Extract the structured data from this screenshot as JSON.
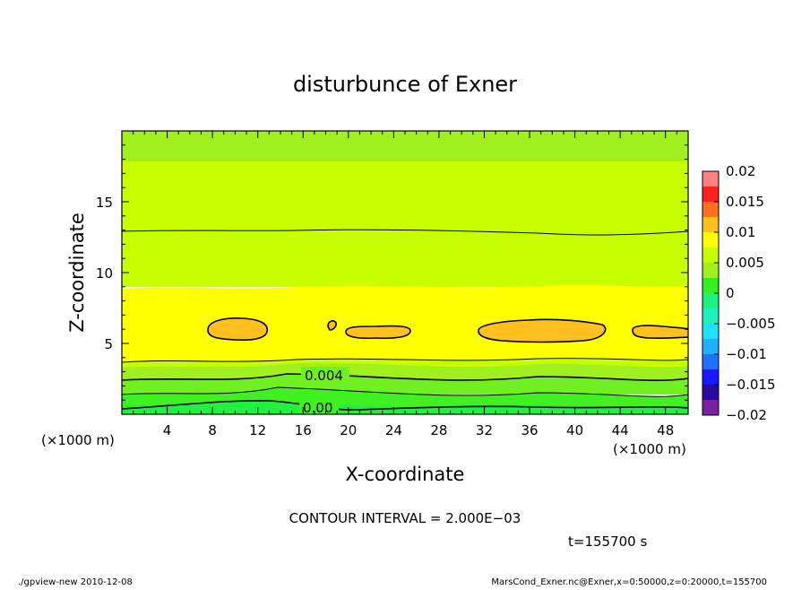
{
  "chart_data": {
    "type": "heatmap",
    "title": "disturbunce of Exner",
    "xlabel": "X-coordinate",
    "ylabel": "Z-coordinate",
    "x_unit_label": "(×1000 m)",
    "x_unit_label_right": "(×1000 m)",
    "xlim": [
      0,
      50
    ],
    "ylim": [
      0,
      20
    ],
    "xticks": [
      4,
      8,
      12,
      16,
      20,
      24,
      28,
      32,
      36,
      40,
      44,
      48
    ],
    "yticks": [
      5,
      10,
      15
    ],
    "colorbar": {
      "ticks": [
        "0.02",
        "0.015",
        "0.01",
        "0.005",
        "0",
        "−0.005",
        "−0.01",
        "−0.015",
        "−0.02"
      ],
      "range": [
        -0.02,
        0.02
      ],
      "levels": [
        {
          "min": -0.02,
          "max": -0.0175,
          "color": "#7a1fa0"
        },
        {
          "min": -0.0175,
          "max": -0.015,
          "color": "#2a0a9e"
        },
        {
          "min": -0.015,
          "max": -0.0125,
          "color": "#1a1aff"
        },
        {
          "min": -0.0125,
          "max": -0.01,
          "color": "#2070ff"
        },
        {
          "min": -0.01,
          "max": -0.0075,
          "color": "#20b0ff"
        },
        {
          "min": -0.0075,
          "max": -0.005,
          "color": "#20e0ff"
        },
        {
          "min": -0.005,
          "max": -0.0025,
          "color": "#20f0c0"
        },
        {
          "min": -0.0025,
          "max": 0,
          "color": "#20f080"
        },
        {
          "min": 0,
          "max": 0.0025,
          "color": "#30f020"
        },
        {
          "min": 0.0025,
          "max": 0.005,
          "color": "#a0f020"
        },
        {
          "min": 0.005,
          "max": 0.0075,
          "color": "#c8ff00"
        },
        {
          "min": 0.0075,
          "max": 0.01,
          "color": "#ffff00"
        },
        {
          "min": 0.01,
          "max": 0.0125,
          "color": "#ffc020"
        },
        {
          "min": 0.0125,
          "max": 0.015,
          "color": "#ff7020"
        },
        {
          "min": 0.015,
          "max": 0.0175,
          "color": "#ff2020"
        },
        {
          "min": 0.0175,
          "max": 0.02,
          "color": "#ff8080"
        }
      ]
    },
    "contour_labels": [
      "0.004",
      "0.00"
    ],
    "contour_interval": "CONTOUR INTERVAL = 2.000E−03",
    "time_label": "t=155700 s",
    "footer_left": "./gpview-new   2010-12-08",
    "footer_right": "MarsCond_Exner.nc@Exner,x=0:50000,z=0:20000,t=155700"
  }
}
